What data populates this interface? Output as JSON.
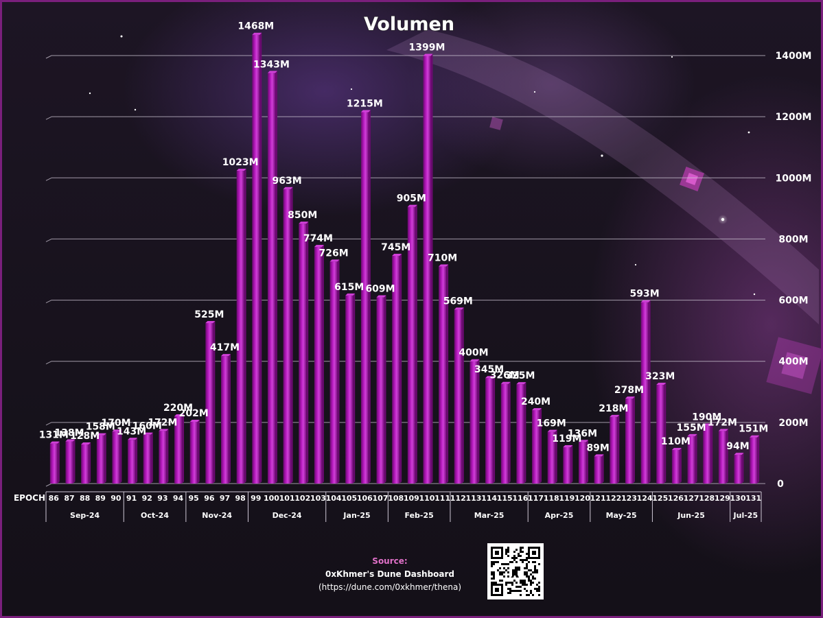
{
  "title": "Volumen",
  "source": {
    "label": "Source:",
    "name": "0xKhmer's Dune Dashboard",
    "url": "(https://dune.com/0xkhmer/thena)"
  },
  "colors": {
    "bar": "#a010a8",
    "bar_light": "#d040d8",
    "bar_dark": "#6a0a70",
    "accent": "#e070c8"
  },
  "chart_data": {
    "type": "bar",
    "title": "Volumen",
    "xlabel": "EPOCH",
    "ylabel": "",
    "ylim": [
      0,
      1400
    ],
    "yticks": [
      "0",
      "200M",
      "400M",
      "600M",
      "800M",
      "1000M",
      "1200M",
      "1400M"
    ],
    "y_axis_side": "right",
    "grid": true,
    "legend": "none",
    "categories": [
      "86",
      "87",
      "88",
      "89",
      "90",
      "91",
      "92",
      "93",
      "94",
      "95",
      "96",
      "97",
      "98",
      "99",
      "100",
      "101",
      "102",
      "103",
      "104",
      "105",
      "106",
      "107",
      "108",
      "109",
      "110",
      "111",
      "112",
      "113",
      "114",
      "115",
      "116",
      "117",
      "118",
      "119",
      "120",
      "121",
      "122",
      "123",
      "124",
      "125",
      "126",
      "127",
      "128",
      "129",
      "130",
      "131"
    ],
    "values": [
      131,
      138,
      128,
      158,
      170,
      143,
      160,
      172,
      220,
      202,
      525,
      417,
      1023,
      1468,
      1343,
      963,
      850,
      774,
      726,
      615,
      1215,
      609,
      745,
      905,
      1399,
      710,
      569,
      400,
      345,
      326,
      325,
      240,
      169,
      119,
      136,
      89,
      218,
      278,
      593,
      323,
      110,
      155,
      190,
      172,
      94,
      151
    ],
    "data_labels": [
      "131M",
      "138M",
      "128M",
      "158M",
      "170M",
      "143M",
      "160M",
      "172M",
      "220M",
      "202M",
      "525M",
      "417M",
      "1023M",
      "1468M",
      "1343M",
      "963M",
      "850M",
      "774M",
      "726M",
      "615M",
      "1215M",
      "609M",
      "745M",
      "905M",
      "1399M",
      "710M",
      "569M",
      "400M",
      "345M",
      "326M",
      "325M",
      "240M",
      "169M",
      "119M",
      "136M",
      "89M",
      "218M",
      "278M",
      "593M",
      "323M",
      "110M",
      "155M",
      "190M",
      "172M",
      "94M",
      "151M"
    ],
    "months": [
      {
        "label": "Sep-24",
        "count": 5
      },
      {
        "label": "Oct-24",
        "count": 4
      },
      {
        "label": "Nov-24",
        "count": 4
      },
      {
        "label": "Dec-24",
        "count": 5
      },
      {
        "label": "Jan-25",
        "count": 4
      },
      {
        "label": "Feb-25",
        "count": 4
      },
      {
        "label": "Mar-25",
        "count": 5
      },
      {
        "label": "Apr-25",
        "count": 4
      },
      {
        "label": "May-25",
        "count": 4
      },
      {
        "label": "Jun-25",
        "count": 5
      },
      {
        "label": "Jul-25",
        "count": 2
      }
    ]
  }
}
